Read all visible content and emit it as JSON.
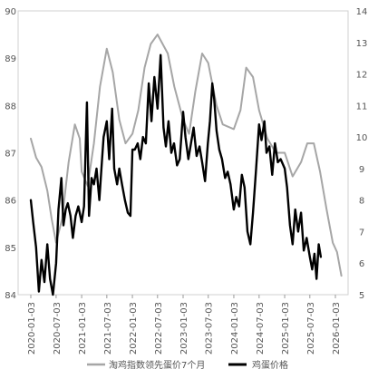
{
  "chart_data": {
    "type": "line",
    "title": "",
    "dual_axis": true,
    "grid": false,
    "legend_position": "bottom",
    "x_ticks": [
      "2020-01-03",
      "2020-07-03",
      "2021-01-03",
      "2021-07-03",
      "2022-01-03",
      "2022-07-03",
      "2023-01-03",
      "2023-07-03",
      "2024-01-03",
      "2024-07-03",
      "2025-01-03",
      "2025-07-03",
      "2026-01-03"
    ],
    "x_range": [
      "2020-01-03",
      "2026-01-03"
    ],
    "y_left": {
      "ticks": [
        "84",
        "85",
        "86",
        "87",
        "88",
        "89",
        "90"
      ],
      "range": [
        84,
        90
      ]
    },
    "y_right": {
      "ticks": [
        "5",
        "6",
        "7",
        "8",
        "9",
        "10",
        "11",
        "12",
        "13",
        "14"
      ],
      "range": [
        5,
        14
      ]
    },
    "series": [
      {
        "name": "淘鸡指数领先蛋价7个月",
        "axis": "left",
        "color": "#a6a6a6",
        "points": [
          [
            "2020-01-03",
            87.3
          ],
          [
            "2020-02-10",
            86.9
          ],
          [
            "2020-03-20",
            86.7
          ],
          [
            "2020-05-01",
            86.2
          ],
          [
            "2020-06-01",
            85.6
          ],
          [
            "2020-07-03",
            85.1
          ],
          [
            "2020-08-15",
            85.6
          ],
          [
            "2020-10-01",
            86.8
          ],
          [
            "2020-11-15",
            87.6
          ],
          [
            "2020-12-20",
            87.3
          ],
          [
            "2021-01-03",
            86.6
          ],
          [
            "2021-02-15",
            86.3
          ],
          [
            "2021-04-01",
            87.2
          ],
          [
            "2021-05-15",
            88.4
          ],
          [
            "2021-07-03",
            89.2
          ],
          [
            "2021-08-15",
            88.7
          ],
          [
            "2021-10-01",
            87.7
          ],
          [
            "2021-11-15",
            87.2
          ],
          [
            "2022-01-03",
            87.4
          ],
          [
            "2022-02-15",
            87.9
          ],
          [
            "2022-04-01",
            88.8
          ],
          [
            "2022-05-15",
            89.3
          ],
          [
            "2022-07-03",
            89.5
          ],
          [
            "2022-09-15",
            89.1
          ],
          [
            "2022-11-01",
            88.4
          ],
          [
            "2023-01-03",
            87.7
          ],
          [
            "2023-02-15",
            87.4
          ],
          [
            "2023-04-01",
            88.3
          ],
          [
            "2023-05-20",
            89.1
          ],
          [
            "2023-07-03",
            88.9
          ],
          [
            "2023-09-01",
            88.0
          ],
          [
            "2023-10-15",
            87.6
          ],
          [
            "2024-01-03",
            87.5
          ],
          [
            "2024-02-20",
            87.9
          ],
          [
            "2024-04-01",
            88.8
          ],
          [
            "2024-05-20",
            88.6
          ],
          [
            "2024-07-03",
            87.9
          ],
          [
            "2024-09-01",
            87.3
          ],
          [
            "2024-11-01",
            87.0
          ],
          [
            "2025-01-03",
            87.0
          ],
          [
            "2025-03-01",
            86.5
          ],
          [
            "2025-05-01",
            86.8
          ],
          [
            "2025-06-15",
            87.2
          ],
          [
            "2025-08-01",
            87.2
          ],
          [
            "2025-09-15",
            86.6
          ],
          [
            "2025-11-01",
            85.8
          ],
          [
            "2025-12-15",
            85.1
          ],
          [
            "2026-01-15",
            84.9
          ],
          [
            "2026-02-15",
            84.4
          ]
        ]
      },
      {
        "name": "鸡蛋价格",
        "axis": "right",
        "color": "#000000",
        "points": [
          [
            "2020-01-03",
            8.0
          ],
          [
            "2020-01-20",
            7.3
          ],
          [
            "2020-02-10",
            6.5
          ],
          [
            "2020-03-01",
            5.1
          ],
          [
            "2020-03-20",
            6.1
          ],
          [
            "2020-04-10",
            5.4
          ],
          [
            "2020-05-01",
            6.6
          ],
          [
            "2020-05-20",
            5.5
          ],
          [
            "2020-06-10",
            5.0
          ],
          [
            "2020-07-03",
            6.0
          ],
          [
            "2020-07-20",
            7.7
          ],
          [
            "2020-08-10",
            8.7
          ],
          [
            "2020-08-25",
            7.2
          ],
          [
            "2020-09-10",
            7.7
          ],
          [
            "2020-09-25",
            7.9
          ],
          [
            "2020-10-15",
            7.5
          ],
          [
            "2020-11-01",
            6.8
          ],
          [
            "2020-11-20",
            7.5
          ],
          [
            "2020-12-10",
            7.8
          ],
          [
            "2021-01-03",
            7.3
          ],
          [
            "2021-01-20",
            7.8
          ],
          [
            "2021-02-10",
            11.1
          ],
          [
            "2021-02-25",
            7.5
          ],
          [
            "2021-03-15",
            8.7
          ],
          [
            "2021-04-01",
            8.5
          ],
          [
            "2021-04-20",
            9.0
          ],
          [
            "2021-05-10",
            8.0
          ],
          [
            "2021-05-25",
            9.0
          ],
          [
            "2021-06-10",
            10.0
          ],
          [
            "2021-07-03",
            10.5
          ],
          [
            "2021-07-20",
            9.3
          ],
          [
            "2021-08-10",
            10.9
          ],
          [
            "2021-08-25",
            9.0
          ],
          [
            "2021-09-15",
            8.5
          ],
          [
            "2021-10-01",
            9.0
          ],
          [
            "2021-10-20",
            8.5
          ],
          [
            "2021-11-10",
            8.0
          ],
          [
            "2021-12-01",
            7.6
          ],
          [
            "2021-12-20",
            7.5
          ],
          [
            "2022-01-03",
            9.6
          ],
          [
            "2022-01-20",
            9.6
          ],
          [
            "2022-02-10",
            9.8
          ],
          [
            "2022-03-01",
            9.3
          ],
          [
            "2022-03-20",
            10.0
          ],
          [
            "2022-04-10",
            9.8
          ],
          [
            "2022-05-01",
            11.7
          ],
          [
            "2022-05-20",
            10.5
          ],
          [
            "2022-06-10",
            11.9
          ],
          [
            "2022-07-03",
            10.9
          ],
          [
            "2022-07-25",
            12.6
          ],
          [
            "2022-08-15",
            10.3
          ],
          [
            "2022-09-01",
            9.7
          ],
          [
            "2022-09-20",
            10.5
          ],
          [
            "2022-10-10",
            9.5
          ],
          [
            "2022-10-30",
            9.8
          ],
          [
            "2022-11-20",
            9.1
          ],
          [
            "2022-12-10",
            9.3
          ],
          [
            "2023-01-03",
            10.8
          ],
          [
            "2023-01-20",
            10.0
          ],
          [
            "2023-02-10",
            9.3
          ],
          [
            "2023-03-01",
            9.8
          ],
          [
            "2023-03-20",
            10.3
          ],
          [
            "2023-04-10",
            9.4
          ],
          [
            "2023-05-01",
            9.7
          ],
          [
            "2023-05-20",
            9.2
          ],
          [
            "2023-06-10",
            8.6
          ],
          [
            "2023-06-30",
            9.8
          ],
          [
            "2023-07-15",
            10.5
          ],
          [
            "2023-08-01",
            11.7
          ],
          [
            "2023-08-15",
            11.2
          ],
          [
            "2023-09-01",
            10.2
          ],
          [
            "2023-09-20",
            9.6
          ],
          [
            "2023-10-10",
            9.3
          ],
          [
            "2023-11-01",
            8.7
          ],
          [
            "2023-11-20",
            8.9
          ],
          [
            "2023-12-10",
            8.5
          ],
          [
            "2024-01-03",
            7.7
          ],
          [
            "2024-01-20",
            8.1
          ],
          [
            "2024-02-10",
            7.8
          ],
          [
            "2024-03-01",
            8.8
          ],
          [
            "2024-03-20",
            8.4
          ],
          [
            "2024-04-10",
            7.0
          ],
          [
            "2024-05-01",
            6.6
          ],
          [
            "2024-05-20",
            7.6
          ],
          [
            "2024-06-10",
            8.9
          ],
          [
            "2024-07-03",
            10.4
          ],
          [
            "2024-07-20",
            9.9
          ],
          [
            "2024-08-10",
            10.5
          ],
          [
            "2024-08-25",
            9.5
          ],
          [
            "2024-09-15",
            9.7
          ],
          [
            "2024-10-05",
            8.8
          ],
          [
            "2024-10-25",
            9.8
          ],
          [
            "2024-11-15",
            9.2
          ],
          [
            "2024-12-05",
            9.3
          ],
          [
            "2025-01-03",
            9.0
          ],
          [
            "2025-01-20",
            8.4
          ],
          [
            "2025-02-10",
            7.2
          ],
          [
            "2025-03-01",
            6.6
          ],
          [
            "2025-03-20",
            7.7
          ],
          [
            "2025-04-10",
            7.0
          ],
          [
            "2025-05-01",
            7.6
          ],
          [
            "2025-05-20",
            6.4
          ],
          [
            "2025-06-10",
            6.8
          ],
          [
            "2025-07-03",
            6.2
          ],
          [
            "2025-07-20",
            5.8
          ],
          [
            "2025-08-05",
            6.3
          ],
          [
            "2025-08-20",
            5.5
          ],
          [
            "2025-09-05",
            6.6
          ],
          [
            "2025-09-20",
            6.2
          ]
        ]
      }
    ]
  }
}
